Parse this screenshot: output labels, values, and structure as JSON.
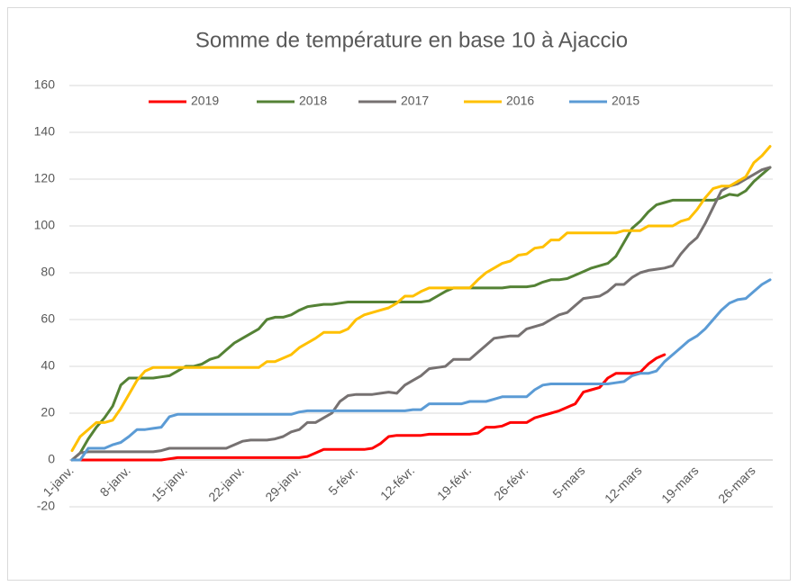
{
  "chart_data": {
    "type": "line",
    "title": "Somme de température en base 10 à Ajaccio",
    "categories": [
      "1-janv.",
      null,
      null,
      null,
      null,
      null,
      null,
      "8-janv.",
      null,
      null,
      null,
      null,
      null,
      null,
      "15-janv.",
      null,
      null,
      null,
      null,
      null,
      null,
      "22-janv.",
      null,
      null,
      null,
      null,
      null,
      null,
      "29-janv.",
      null,
      null,
      null,
      null,
      null,
      null,
      "5-févr.",
      null,
      null,
      null,
      null,
      null,
      null,
      "12-févr.",
      null,
      null,
      null,
      null,
      null,
      null,
      "19-févr.",
      null,
      null,
      null,
      null,
      null,
      null,
      "26-févr.",
      null,
      null,
      null,
      null,
      null,
      null,
      "5-mars",
      null,
      null,
      null,
      null,
      null,
      null,
      "12-mars",
      null,
      null,
      null,
      null,
      null,
      null,
      "19-mars",
      null,
      null,
      null,
      null,
      null,
      null,
      "26-mars",
      null,
      null
    ],
    "series": [
      {
        "name": "2019",
        "color": "#ff0000",
        "values": [
          0,
          0,
          0,
          0,
          0,
          0,
          0,
          0,
          0,
          0,
          0,
          0,
          0.5,
          1,
          1,
          1,
          1,
          1,
          1,
          1,
          1,
          1,
          1,
          1,
          1,
          1,
          1,
          1,
          1,
          1.5,
          3,
          4.5,
          4.5,
          4.5,
          4.5,
          4.5,
          4.5,
          5,
          7,
          10,
          10.5,
          10.5,
          10.5,
          10.5,
          11,
          11,
          11,
          11,
          11,
          11,
          11.5,
          14,
          14,
          14.5,
          16,
          16,
          16,
          18,
          19,
          20,
          21,
          22.5,
          24,
          29,
          30,
          31,
          35,
          37,
          37,
          37,
          37.5,
          41,
          43.5,
          45,
          null,
          null,
          null,
          null,
          null,
          null,
          null,
          null,
          null,
          null,
          null,
          null,
          null
        ]
      },
      {
        "name": "2018",
        "color": "#548235",
        "values": [
          0,
          3,
          9,
          14,
          18,
          23,
          32,
          35,
          35,
          35,
          35,
          35.5,
          36,
          38,
          40,
          40,
          41,
          43,
          44,
          47,
          50,
          52,
          54,
          56,
          60,
          61,
          61,
          62,
          64,
          65.5,
          66,
          66.5,
          66.5,
          67,
          67.5,
          67.5,
          67.5,
          67.5,
          67.5,
          67.5,
          67.5,
          67.5,
          67.5,
          67.5,
          68,
          70,
          72,
          73.5,
          73.5,
          73.5,
          73.5,
          73.5,
          73.5,
          73.5,
          74,
          74,
          74,
          74.5,
          76,
          77,
          77,
          77.5,
          79,
          80.5,
          82,
          83,
          84,
          87,
          93,
          99,
          102,
          106,
          109,
          110,
          111,
          111,
          111,
          111,
          111,
          111,
          112,
          113.5,
          113,
          115,
          119,
          122,
          125
        ]
      },
      {
        "name": "2017",
        "color": "#767171",
        "values": [
          0,
          3,
          3.5,
          3.5,
          3.5,
          3.5,
          3.5,
          3.5,
          3.5,
          3.5,
          3.5,
          4,
          5,
          5,
          5,
          5,
          5,
          5,
          5,
          5,
          6.5,
          8,
          8.5,
          8.5,
          8.5,
          9,
          10,
          12,
          13,
          16,
          16,
          18,
          20,
          25,
          27.5,
          28,
          28,
          28,
          28.5,
          29,
          28.5,
          32,
          34,
          36,
          39,
          39.5,
          40,
          43,
          43,
          43,
          46,
          49,
          52,
          52.5,
          53,
          53,
          56,
          57,
          58,
          60,
          62,
          63,
          66,
          69,
          69.5,
          70,
          72,
          75,
          75,
          78,
          80,
          81,
          81.5,
          82,
          83,
          88,
          92,
          95,
          101,
          108,
          115,
          117,
          118,
          120,
          122,
          124,
          125
        ]
      },
      {
        "name": "2016",
        "color": "#ffc000",
        "values": [
          4,
          10,
          13,
          16,
          16,
          17,
          22,
          28,
          34,
          38,
          39.5,
          39.5,
          39.5,
          39.5,
          39.5,
          39.5,
          39.5,
          39.5,
          39.5,
          39.5,
          39.5,
          39.5,
          39.5,
          39.5,
          42,
          42,
          43.5,
          45,
          48,
          50,
          52,
          54.5,
          54.5,
          54.5,
          56,
          60,
          62,
          63,
          64,
          65,
          67,
          70,
          70,
          72,
          73.5,
          73.5,
          73.5,
          73.5,
          73.5,
          73.5,
          77,
          80,
          82,
          84,
          85,
          87.5,
          88,
          90.5,
          91,
          94,
          94,
          97,
          97,
          97,
          97,
          97,
          97,
          97,
          98,
          98,
          98,
          100,
          100,
          100,
          100,
          102,
          103,
          107,
          112,
          116,
          117,
          117,
          119,
          121,
          127,
          130,
          134
        ]
      },
      {
        "name": "2015",
        "color": "#5b9bd5",
        "values": [
          0,
          0,
          5,
          5,
          5,
          6.5,
          7.5,
          10,
          13,
          13,
          13.5,
          14,
          18.5,
          19.5,
          19.5,
          19.5,
          19.5,
          19.5,
          19.5,
          19.5,
          19.5,
          19.5,
          19.5,
          19.5,
          19.5,
          19.5,
          19.5,
          19.5,
          20.5,
          21,
          21,
          21,
          21,
          21,
          21,
          21,
          21,
          21,
          21,
          21,
          21,
          21,
          21.5,
          21.5,
          24,
          24,
          24,
          24,
          24,
          25,
          25,
          25,
          26,
          27,
          27,
          27,
          27,
          30,
          32,
          32.5,
          32.5,
          32.5,
          32.5,
          32.5,
          32.5,
          32.5,
          32.5,
          33,
          33.5,
          36,
          37,
          37,
          38,
          42,
          45,
          48,
          51,
          53,
          56,
          60,
          64,
          67,
          68.5,
          69,
          72,
          75,
          77
        ]
      }
    ],
    "ylim": [
      -20,
      160
    ],
    "yticks": [
      -20,
      0,
      20,
      40,
      60,
      80,
      100,
      120,
      140,
      160
    ],
    "grid": true,
    "legend": "top"
  }
}
